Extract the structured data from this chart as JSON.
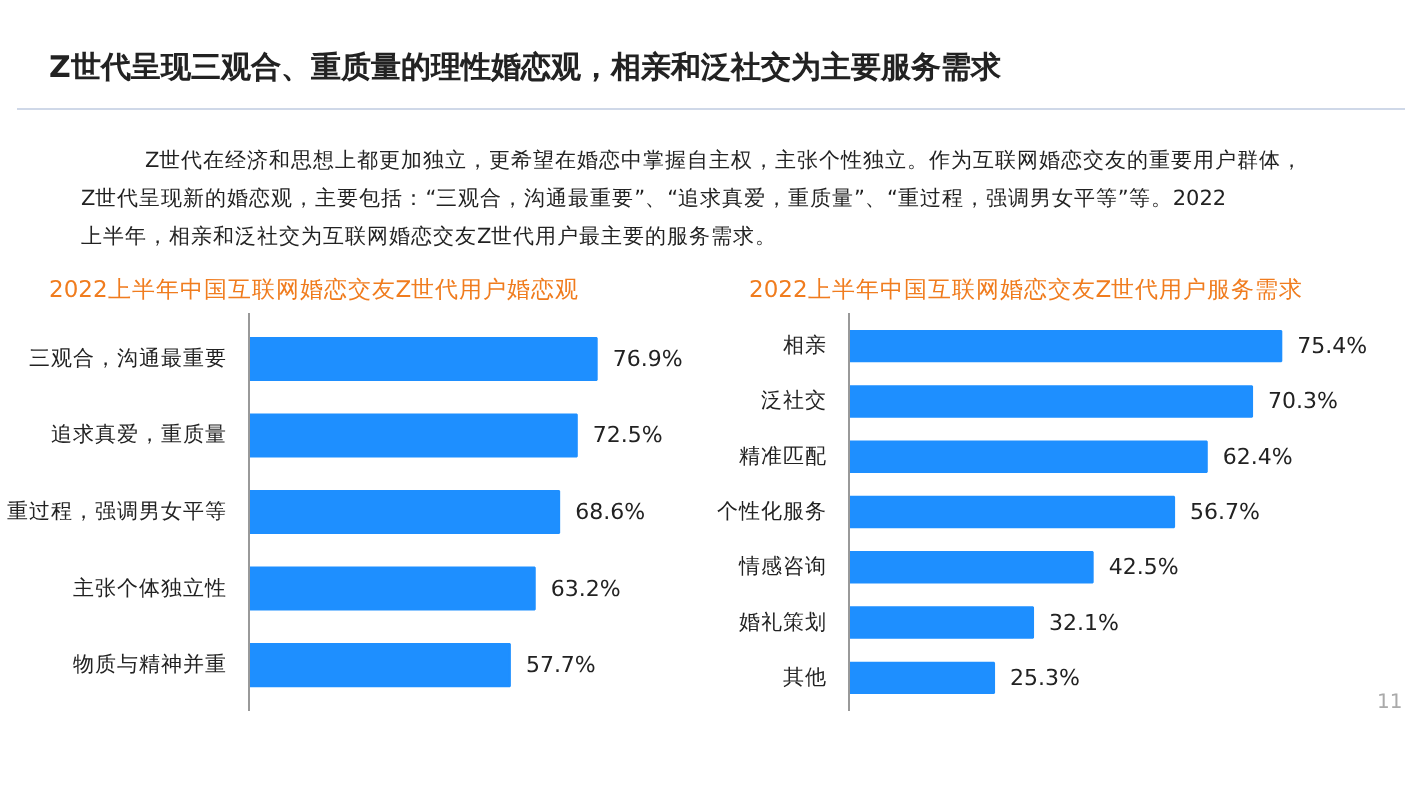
{
  "chart_data": [
    {
      "type": "other",
      "title": "Z世代呈现三观合、重质量的理性婚恋观，相亲和泛社交为主要服务需求",
      "annotations": [
        "Z世代在经济和思想上都更加独立，更希望在婚恋中掌握自主权，主张个性独立。作为互联网婚恋交友的重要用户群体，",
        "Z世代呈现新的婚恋观，主要包括：“三观合，沟通最重要”、“追求真爱，重质量”、“重过程，强调男女平等”等。2022",
        "上半年，相亲和泛社交为互联网婚恋交友Z世代用户最主要的服务需求。"
      ]
    },
    {
      "type": "bar",
      "orientation": "horizontal",
      "title": "2022上半年中国互联网婚恋交友Z世代用户婚恋观",
      "categories": [
        "三观合，沟通最重要",
        "追求真爱，重质量",
        "重过程，强调男女平等",
        "主张个体独立性",
        "物质与精神并重"
      ],
      "values": [
        76.9,
        72.5,
        68.6,
        63.2,
        57.7
      ],
      "value_labels": [
        "76.9%",
        "72.5%",
        "68.6%",
        "63.2%",
        "57.7%"
      ],
      "color": "#1e8fff"
    },
    {
      "type": "bar",
      "orientation": "horizontal",
      "title": "2022上半年中国互联网婚恋交友Z世代用户服务需求",
      "categories": [
        "相亲",
        "泛社交",
        "精准匹配",
        "个性化服务",
        "情感咨询",
        "婚礼策划",
        "其他"
      ],
      "values": [
        75.4,
        70.3,
        62.4,
        56.7,
        42.5,
        32.1,
        25.3
      ],
      "value_labels": [
        "75.4%",
        "70.3%",
        "62.4%",
        "56.7%",
        "42.5%",
        "32.1%",
        "25.3%"
      ],
      "color": "#1e8fff",
      "annotations": [
        "11"
      ]
    }
  ]
}
